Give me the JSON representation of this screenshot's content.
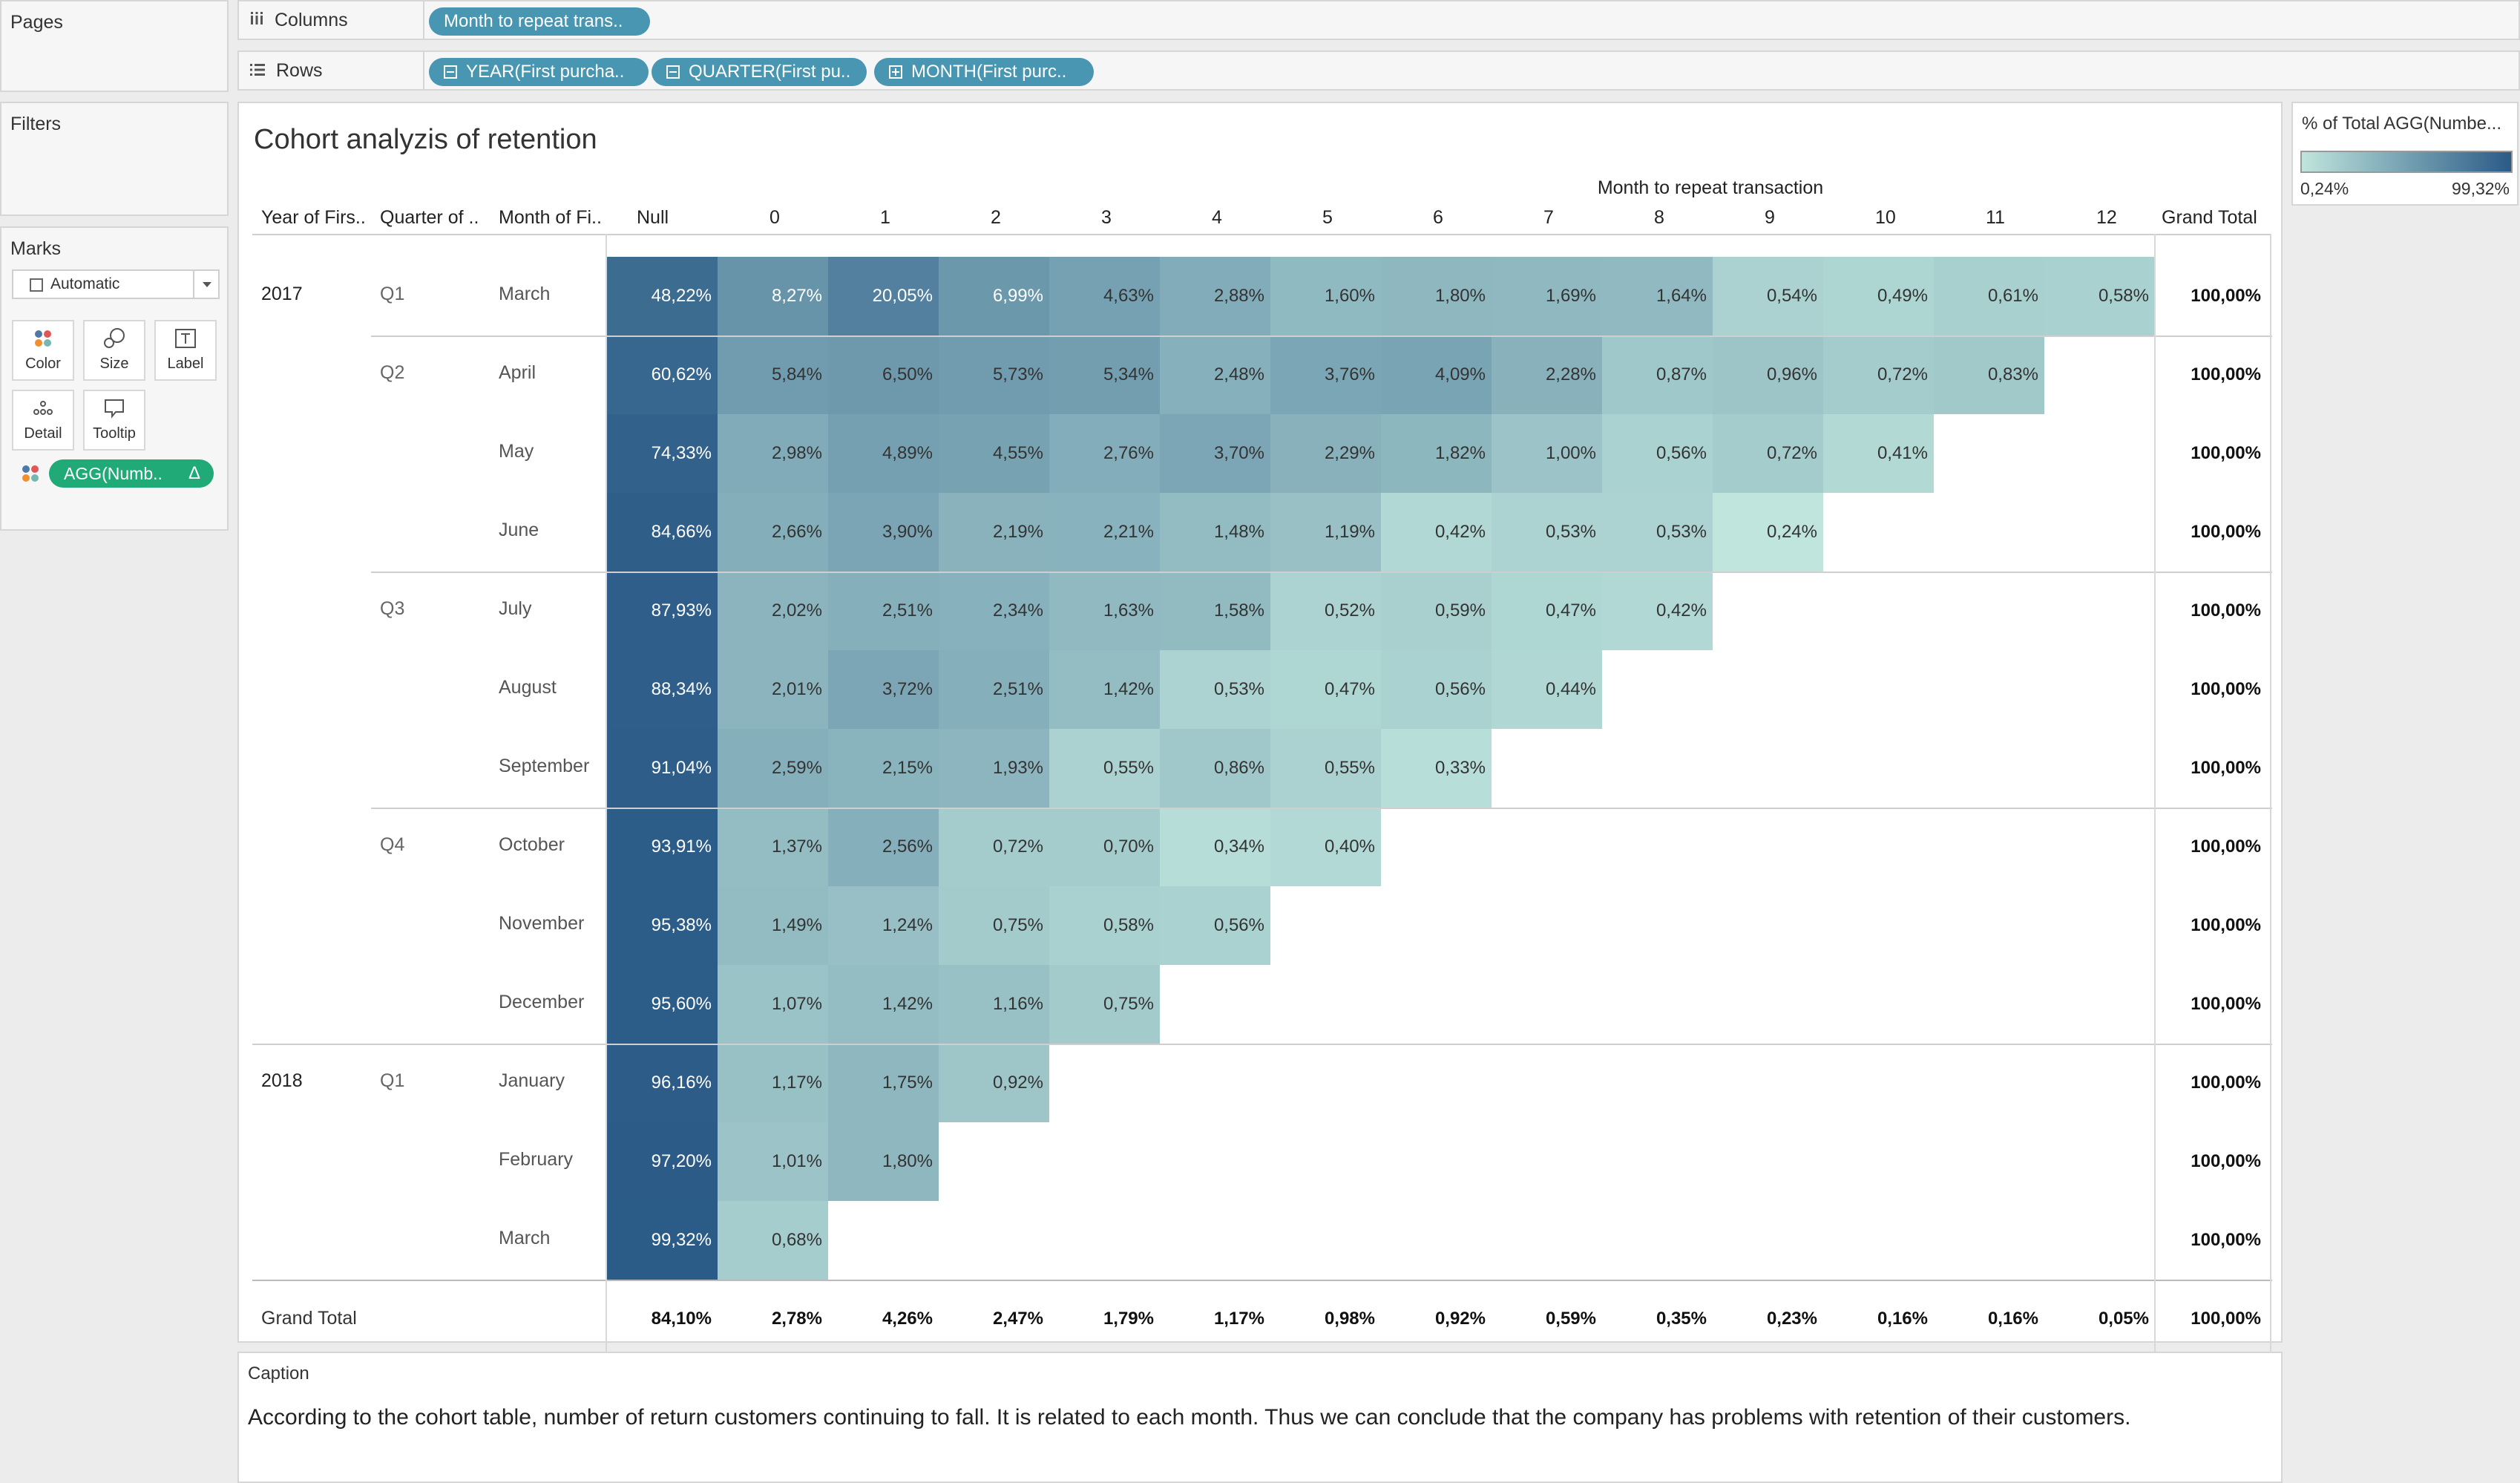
{
  "pages_panel": {
    "title": "Pages"
  },
  "filters_panel": {
    "title": "Filters"
  },
  "marks_panel": {
    "title": "Marks",
    "mark_type": "Automatic",
    "buttons": {
      "color": "Color",
      "size": "Size",
      "label": "Label",
      "detail": "Detail",
      "tooltip": "Tooltip"
    },
    "color_field": "AGG(Numb..",
    "color_field_delta": "Δ"
  },
  "columns_shelf": {
    "label": "Columns",
    "pills": [
      "Month to repeat trans.."
    ]
  },
  "rows_shelf": {
    "label": "Rows",
    "pills": [
      "YEAR(First purcha..",
      "QUARTER(First pu..",
      "MONTH(First purc.."
    ]
  },
  "view": {
    "title": "Cohort analyzis of retention",
    "column_group_header": "Month to repeat transaction",
    "row_headers": [
      "Year of Firs..",
      "Quarter of ..",
      "Month of Fi.."
    ],
    "column_headers": [
      "Null",
      "0",
      "1",
      "2",
      "3",
      "4",
      "5",
      "6",
      "7",
      "8",
      "9",
      "10",
      "11",
      "12"
    ],
    "grand_total_label": "Grand Total",
    "rows": [
      {
        "year": "2017",
        "quarter": "Q1",
        "month": "March",
        "cells": [
          "48,22%",
          "8,27%",
          "20,05%",
          "6,99%",
          "4,63%",
          "2,88%",
          "1,60%",
          "1,80%",
          "1,69%",
          "1,64%",
          "0,54%",
          "0,49%",
          "0,61%",
          "0,58%"
        ],
        "total": "100,00%"
      },
      {
        "year": "",
        "quarter": "Q2",
        "month": "April",
        "cells": [
          "60,62%",
          "5,84%",
          "6,50%",
          "5,73%",
          "5,34%",
          "2,48%",
          "3,76%",
          "4,09%",
          "2,28%",
          "0,87%",
          "0,96%",
          "0,72%",
          "0,83%"
        ],
        "total": "100,00%"
      },
      {
        "year": "",
        "quarter": "",
        "month": "May",
        "cells": [
          "74,33%",
          "2,98%",
          "4,89%",
          "4,55%",
          "2,76%",
          "3,70%",
          "2,29%",
          "1,82%",
          "1,00%",
          "0,56%",
          "0,72%",
          "0,41%"
        ],
        "total": "100,00%"
      },
      {
        "year": "",
        "quarter": "",
        "month": "June",
        "cells": [
          "84,66%",
          "2,66%",
          "3,90%",
          "2,19%",
          "2,21%",
          "1,48%",
          "1,19%",
          "0,42%",
          "0,53%",
          "0,53%",
          "0,24%"
        ],
        "total": "100,00%"
      },
      {
        "year": "",
        "quarter": "Q3",
        "month": "July",
        "cells": [
          "87,93%",
          "2,02%",
          "2,51%",
          "2,34%",
          "1,63%",
          "1,58%",
          "0,52%",
          "0,59%",
          "0,47%",
          "0,42%"
        ],
        "total": "100,00%"
      },
      {
        "year": "",
        "quarter": "",
        "month": "August",
        "cells": [
          "88,34%",
          "2,01%",
          "3,72%",
          "2,51%",
          "1,42%",
          "0,53%",
          "0,47%",
          "0,56%",
          "0,44%"
        ],
        "total": "100,00%"
      },
      {
        "year": "",
        "quarter": "",
        "month": "September",
        "cells": [
          "91,04%",
          "2,59%",
          "2,15%",
          "1,93%",
          "0,55%",
          "0,86%",
          "0,55%",
          "0,33%"
        ],
        "total": "100,00%"
      },
      {
        "year": "",
        "quarter": "Q4",
        "month": "October",
        "cells": [
          "93,91%",
          "1,37%",
          "2,56%",
          "0,72%",
          "0,70%",
          "0,34%",
          "0,40%"
        ],
        "total": "100,00%"
      },
      {
        "year": "",
        "quarter": "",
        "month": "November",
        "cells": [
          "95,38%",
          "1,49%",
          "1,24%",
          "0,75%",
          "0,58%",
          "0,56%"
        ],
        "total": "100,00%"
      },
      {
        "year": "",
        "quarter": "",
        "month": "December",
        "cells": [
          "95,60%",
          "1,07%",
          "1,42%",
          "1,16%",
          "0,75%"
        ],
        "total": "100,00%"
      },
      {
        "year": "2018",
        "quarter": "Q1",
        "month": "January",
        "cells": [
          "96,16%",
          "1,17%",
          "1,75%",
          "0,92%"
        ],
        "total": "100,00%"
      },
      {
        "year": "",
        "quarter": "",
        "month": "February",
        "cells": [
          "97,20%",
          "1,01%",
          "1,80%"
        ],
        "total": "100,00%"
      },
      {
        "year": "",
        "quarter": "",
        "month": "March",
        "cells": [
          "99,32%",
          "0,68%"
        ],
        "total": "100,00%"
      }
    ],
    "grand_total_row": [
      "84,10%",
      "2,78%",
      "4,26%",
      "2,47%",
      "1,79%",
      "1,17%",
      "0,98%",
      "0,92%",
      "0,59%",
      "0,35%",
      "0,23%",
      "0,16%",
      "0,16%",
      "0,05%"
    ],
    "grand_total_total": "100,00%"
  },
  "legend": {
    "title": "% of Total AGG(Numbe...",
    "min_label": "0,24%",
    "max_label": "99,32%",
    "color_low": "#bfe5dc",
    "color_high": "#2b5b87"
  },
  "caption": {
    "title": "Caption",
    "text": "According to the cohort table, number of return customers continuing to fall. It is related to each month. Thus we can conclude that the company has problems with retention of their customers."
  },
  "colors": {
    "pill_blue": "#4996b2",
    "pill_green": "#1faa78"
  }
}
